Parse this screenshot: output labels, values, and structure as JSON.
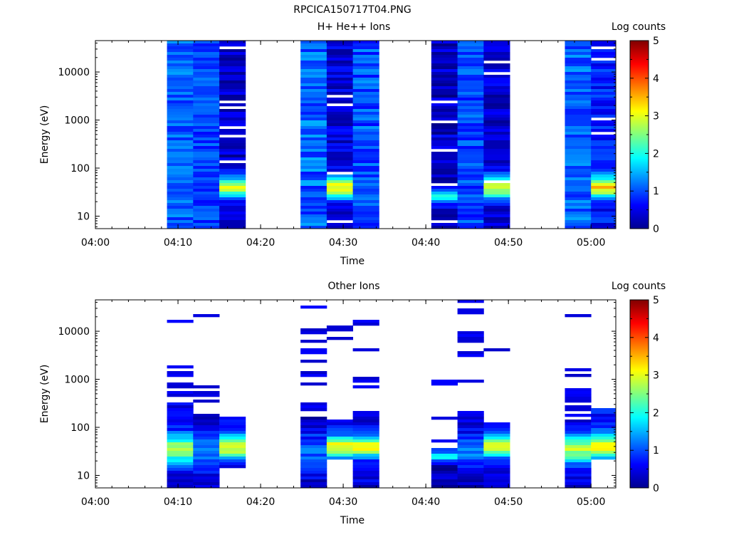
{
  "figure": {
    "title": "RPCICA150717T04.PNG"
  },
  "chart_data": [
    {
      "type": "heatmap",
      "title": "H+ He++ Ions",
      "xlabel": "Time",
      "ylabel": "Energy (eV)",
      "x_ticks": [
        "04:00",
        "04:10",
        "04:20",
        "04:30",
        "04:40",
        "04:50",
        "05:00"
      ],
      "xlim": [
        "04:00",
        "05:03"
      ],
      "y_scale": "log",
      "y_ticks": [
        10,
        100,
        1000,
        10000
      ],
      "ylim": [
        5.5,
        45000
      ],
      "colorbar": {
        "label": "Log counts",
        "range": [
          0,
          5
        ],
        "ticks": [
          0,
          1,
          2,
          3,
          4,
          5
        ],
        "colormap": "jet"
      },
      "bands": [
        {
          "start": "04:08:40",
          "end": "04:11:50",
          "profile": "flat",
          "level": 1.1,
          "variability": 0.35,
          "gaps": [],
          "seed": 11
        },
        {
          "start": "04:11:50",
          "end": "04:15:00",
          "profile": "flat",
          "level": 0.95,
          "variability": 0.3,
          "gaps": [],
          "seed": 12
        },
        {
          "start": "04:15:00",
          "end": "04:18:10",
          "profile": "lowpeak",
          "level": 0.35,
          "variability": 0.3,
          "gaps": [
            130,
            480,
            700,
            1800,
            2400,
            30000
          ],
          "seed": 13
        },
        {
          "start": "04:24:50",
          "end": "04:28:00",
          "profile": "flat",
          "level": 1.1,
          "variability": 0.4,
          "gaps": [],
          "seed": 14
        },
        {
          "start": "04:28:00",
          "end": "04:31:10",
          "profile": "lowpeak",
          "level": 0.45,
          "variability": 0.3,
          "gaps": [
            8,
            75,
            2100,
            3100
          ],
          "seed": 15
        },
        {
          "start": "04:31:10",
          "end": "04:34:20",
          "profile": "flat",
          "level": 1.0,
          "variability": 0.4,
          "gaps": [],
          "seed": 16
        },
        {
          "start": "04:40:40",
          "end": "04:43:50",
          "profile": "lowmid",
          "level": 0.35,
          "variability": 0.35,
          "gaps": [
            8,
            45,
            250,
            900,
            2400
          ],
          "seed": 17
        },
        {
          "start": "04:43:50",
          "end": "04:47:00",
          "profile": "flat",
          "level": 0.95,
          "variability": 0.35,
          "gaps": [],
          "seed": 18
        },
        {
          "start": "04:47:00",
          "end": "04:50:10",
          "profile": "lowpeak",
          "level": 0.4,
          "variability": 0.3,
          "gaps": [
            50,
            10000,
            16000
          ],
          "seed": 19
        },
        {
          "start": "04:56:50",
          "end": "05:00:00",
          "profile": "flat",
          "level": 1.1,
          "variability": 0.35,
          "gaps": [],
          "seed": 20
        },
        {
          "start": "05:00:00",
          "end": "05:03:10",
          "profile": "lowpeak",
          "level": 0.7,
          "variability": 0.35,
          "gaps": [
            500,
            1050,
            18000,
            32000
          ],
          "seed": 21
        }
      ]
    },
    {
      "type": "heatmap",
      "title": "Other Ions",
      "xlabel": "Time",
      "ylabel": "Energy (eV)",
      "x_ticks": [
        "04:00",
        "04:10",
        "04:20",
        "04:30",
        "04:40",
        "04:50",
        "05:00"
      ],
      "xlim": [
        "04:00",
        "05:03"
      ],
      "y_scale": "log",
      "y_ticks": [
        10,
        100,
        1000,
        10000
      ],
      "ylim": [
        5.5,
        45000
      ],
      "colorbar": {
        "label": "Log counts",
        "range": [
          0,
          5
        ],
        "ticks": [
          0,
          1,
          2,
          3,
          4,
          5
        ],
        "colormap": "jet"
      },
      "bands": [
        {
          "start": "04:08:40",
          "end": "04:11:50",
          "profile": "midpeak",
          "fill_below": 320,
          "level": 0.5,
          "lines": [
            450,
            520,
            680,
            800,
            1150,
            1300,
            1900,
            16500
          ],
          "seed": 31
        },
        {
          "start": "04:11:50",
          "end": "04:15:00",
          "profile": "lowblue",
          "fill_below": 200,
          "level": 0.4,
          "lines": [
            360,
            450,
            550,
            680,
            21000
          ],
          "seed": 32
        },
        {
          "start": "04:15:00",
          "end": "04:18:10",
          "profile": "lowpeak",
          "fill_below": 170,
          "fill_above": 15,
          "level": 0.6,
          "lines": [],
          "seed": 33
        },
        {
          "start": "04:24:50",
          "end": "04:28:00",
          "profile": "lowblue",
          "fill_below": 175,
          "level": 0.35,
          "lines": [
            240,
            290,
            820,
            1150,
            1400,
            2500,
            3800,
            6200,
            9500,
            11000,
            33000
          ],
          "seed": 34
        },
        {
          "start": "04:28:00",
          "end": "04:31:10",
          "profile": "lowpeak",
          "fill_below": 140,
          "fill_above": 22,
          "level": 0.55,
          "lines": [
            7500,
            11500
          ],
          "seed": 35
        },
        {
          "start": "04:31:10",
          "end": "04:34:20",
          "profile": "lowpeak",
          "fill_below": 230,
          "level": 0.45,
          "lines": [
            680,
            950,
            1050,
            4300,
            15000
          ],
          "seed": 36
        },
        {
          "start": "04:40:40",
          "end": "04:43:50",
          "profile": "lowmid",
          "fill_below": 36,
          "level": 0.3,
          "lines": [
            55,
            160,
            870
          ],
          "seed": 37
        },
        {
          "start": "04:43:50",
          "end": "04:47:00",
          "profile": "lowblue",
          "fill_below": 220,
          "level": 0.35,
          "lines": [
            900,
            3100,
            3600,
            6300,
            7700,
            9500,
            26000,
            41000
          ],
          "seed": 38
        },
        {
          "start": "04:47:00",
          "end": "04:50:10",
          "profile": "lowpeak",
          "fill_below": 135,
          "level": 0.4,
          "lines": [
            4300
          ],
          "seed": 39
        },
        {
          "start": "04:56:50",
          "end": "05:00:00",
          "profile": "midpeak",
          "fill_below": 140,
          "level": 0.5,
          "lines": [
            180,
            250,
            280,
            350,
            430,
            500,
            600,
            1200,
            1600,
            22000
          ],
          "seed": 40
        },
        {
          "start": "05:00:00",
          "end": "05:03:10",
          "profile": "lowpeak",
          "fill_below": 250,
          "fill_above": 22,
          "level": 0.7,
          "lines": [],
          "seed": 41
        }
      ]
    }
  ]
}
